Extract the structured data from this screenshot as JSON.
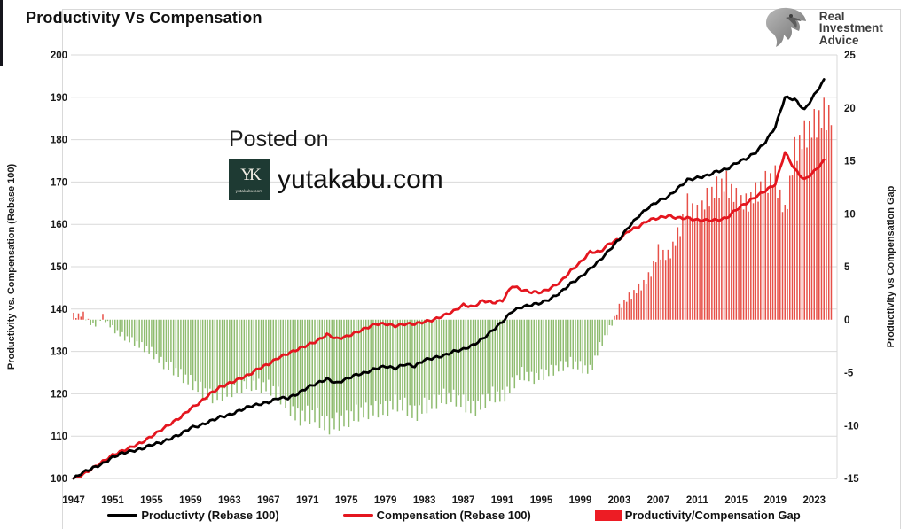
{
  "header": {
    "title": "Productivity Vs Compensation",
    "brand": {
      "line1": "Real",
      "line2": "Investment",
      "line3": "Advice"
    }
  },
  "watermark": {
    "line1": "Posted on",
    "site": "yutakabu.com",
    "badge_monogram": "YK",
    "badge_caption": "yutakabu.com"
  },
  "chart_data": {
    "type": "combo",
    "title": "Productivity Vs Compensation",
    "left_axis": {
      "label": "Productivity vs. Compensation (Rebase 100)",
      "min": 100,
      "max": 200,
      "ticks": [
        200,
        190,
        180,
        170,
        160,
        150,
        140,
        130,
        120,
        110,
        100
      ]
    },
    "right_axis": {
      "label": "Productivity vs Compensation Gap",
      "min": -15,
      "max": 25,
      "ticks": [
        25,
        20,
        15,
        10,
        5,
        0,
        -5,
        -10,
        -15
      ]
    },
    "x_ticks": [
      1947,
      1951,
      1955,
      1959,
      1963,
      1967,
      1971,
      1975,
      1979,
      1983,
      1987,
      1991,
      1995,
      1999,
      2003,
      2007,
      2011,
      2015,
      2019,
      2023
    ],
    "years": {
      "start": 1947,
      "end": 2024,
      "step": 1
    },
    "grid": "horizontal",
    "legend_position": "bottom",
    "series": [
      {
        "name": "Productivty (Rebase 100)",
        "type": "line",
        "axis": "left",
        "color": "#000000",
        "values": [
          100,
          101.5,
          102.5,
          103.5,
          105,
          106,
          106.5,
          107,
          108,
          108.5,
          109.5,
          110.5,
          112,
          112.5,
          113.5,
          114.5,
          115,
          116,
          117,
          117.5,
          118,
          119,
          119,
          120,
          121.5,
          122.5,
          123.5,
          122.5,
          123.5,
          124.5,
          125,
          126,
          126.5,
          126,
          127,
          126.5,
          128,
          128.5,
          129,
          130,
          130.5,
          131.5,
          133,
          135,
          137,
          139.5,
          140.5,
          141,
          141.5,
          142.5,
          144,
          146,
          147.5,
          149.5,
          151.5,
          154,
          156.5,
          159.5,
          162,
          164,
          165.5,
          166.5,
          168.5,
          170.5,
          171,
          171.5,
          172.5,
          173,
          174.5,
          175.5,
          177,
          179.5,
          183,
          190,
          189.5,
          187,
          190.5,
          194
        ]
      },
      {
        "name": "Compensation (Rebase 100)",
        "type": "line",
        "axis": "left",
        "color": "#e4161f",
        "values": [
          100,
          101,
          102.5,
          104,
          105.5,
          106.5,
          107.5,
          108.5,
          110,
          111.5,
          113,
          114.5,
          116.5,
          118,
          120,
          121.5,
          122.5,
          123.5,
          124.5,
          126,
          127,
          128.5,
          129.5,
          130.5,
          131.5,
          132.5,
          134,
          133,
          133.5,
          134.5,
          135.5,
          136.5,
          136.5,
          136,
          136.5,
          136.5,
          137,
          137.5,
          138.5,
          139.5,
          141,
          140.5,
          142,
          141.5,
          142,
          145.5,
          144.5,
          144,
          144,
          145,
          146.5,
          149,
          151,
          153.5,
          153.5,
          155.5,
          156.5,
          158.5,
          159.5,
          161,
          161.5,
          162,
          161.5,
          161.5,
          161,
          161,
          161,
          161.5,
          163.5,
          165,
          166.5,
          168,
          169.5,
          177,
          173,
          170.5,
          172.5,
          175
        ]
      },
      {
        "name": "Productivity/Compensation Gap",
        "type": "bar",
        "axis": "right",
        "color_positive": "#e75048",
        "color_negative": "#8fbc70",
        "values": [
          0.4,
          0.5,
          -0.6,
          0.3,
          -0.8,
          -1.5,
          -2,
          -2.5,
          -3,
          -4,
          -4.5,
          -5.2,
          -5.8,
          -6.5,
          -7.2,
          -7,
          -6.7,
          -6.3,
          -6,
          -6.2,
          -6.3,
          -7,
          -8,
          -9.2,
          -8.9,
          -9.1,
          -10,
          -9.6,
          -9.4,
          -8.8,
          -8.6,
          -8.4,
          -8.4,
          -7.8,
          -8.1,
          -8.9,
          -8.1,
          -7.8,
          -7.2,
          -7.3,
          -7.8,
          -8.4,
          -7.8,
          -7,
          -7.3,
          -6.1,
          -5,
          -5.5,
          -5.2,
          -4.8,
          -4.4,
          -4,
          -4.4,
          -4.8,
          -2.5,
          -0.8,
          1.2,
          2.2,
          3,
          4,
          6.5,
          6,
          8,
          11,
          10,
          11.5,
          12.5,
          13,
          11.5,
          11,
          12,
          13,
          13.5,
          10,
          16,
          17.5,
          18.5,
          19.5
        ]
      }
    ],
    "legend": [
      {
        "label": "Productivty (Rebase 100)",
        "swatch": "line",
        "color": "#000000"
      },
      {
        "label": "Compensation (Rebase 100)",
        "swatch": "line",
        "color": "#e4161f"
      },
      {
        "label": "Productivity/Compensation Gap",
        "swatch": "rect",
        "color": "#ed1c24"
      }
    ],
    "colors": {
      "gridline": "#d9d9d9",
      "axis_text": "#1a1a1a"
    }
  }
}
